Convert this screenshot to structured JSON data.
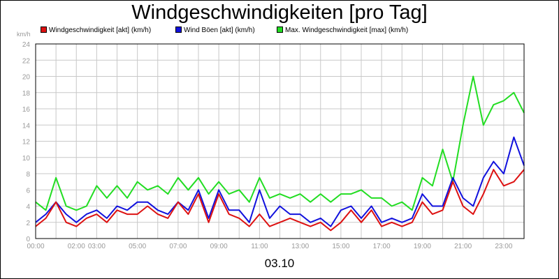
{
  "title": "Windgeschwindigkeiten [pro Tag]",
  "date_label": "03.10",
  "colors": {
    "frame": "#000000",
    "grid": "#c8c8c8",
    "tick_text": "#999999"
  },
  "chart_data": {
    "type": "line",
    "title": "Windgeschwindigkeiten [pro Tag]",
    "ylabel": "km/h",
    "xlabel": "03.10",
    "ylim": [
      0,
      24
    ],
    "yticks": [
      0,
      2,
      4,
      6,
      8,
      10,
      12,
      14,
      16,
      18,
      20,
      22,
      24
    ],
    "xlim": [
      0,
      24
    ],
    "xticks": [
      {
        "h": 0,
        "label": "00:00"
      },
      {
        "h": 2,
        "label": "02:00"
      },
      {
        "h": 3,
        "label": "03:00"
      },
      {
        "h": 5,
        "label": "05:00"
      },
      {
        "h": 7,
        "label": "07:00"
      },
      {
        "h": 9,
        "label": "09:00"
      },
      {
        "h": 11,
        "label": "11:00"
      },
      {
        "h": 13,
        "label": "13:00"
      },
      {
        "h": 15,
        "label": "15:00"
      },
      {
        "h": 17,
        "label": "17:00"
      },
      {
        "h": 19,
        "label": "19:00"
      },
      {
        "h": 21,
        "label": "21:00"
      },
      {
        "h": 23,
        "label": "23:00"
      }
    ],
    "legend_position": "top",
    "grid": true,
    "series": [
      {
        "name": "Windgeschwindigkeit [akt] (km/h)",
        "color": "#dd1111",
        "x": [
          0,
          0.5,
          1,
          1.5,
          2,
          2.5,
          3,
          3.5,
          4,
          4.5,
          5,
          5.5,
          6,
          6.5,
          7,
          7.5,
          8,
          8.5,
          9,
          9.5,
          10,
          10.5,
          11,
          11.5,
          12,
          12.5,
          13,
          13.5,
          14,
          14.5,
          15,
          15.5,
          16,
          16.5,
          17,
          17.5,
          18,
          18.5,
          19,
          19.5,
          20,
          20.5,
          21,
          21.5,
          22,
          22.5,
          23,
          23.5,
          24
        ],
        "values": [
          1.5,
          2.5,
          4.5,
          2.0,
          1.5,
          2.5,
          3.0,
          2.0,
          3.5,
          3.0,
          3.0,
          4.0,
          3.0,
          2.5,
          4.5,
          3.0,
          5.5,
          2.0,
          5.5,
          3.0,
          2.5,
          1.5,
          3.0,
          1.5,
          2.0,
          2.5,
          2.0,
          1.5,
          2.0,
          1.0,
          2.0,
          3.5,
          2.0,
          3.5,
          1.5,
          2.0,
          1.5,
          2.0,
          4.5,
          3.0,
          3.5,
          7.0,
          4.0,
          3.0,
          5.5,
          8.5,
          6.5,
          7.0,
          8.5
        ]
      },
      {
        "name": "Wind Böen [akt] (km/h)",
        "color": "#1111dd",
        "x": [
          0,
          0.5,
          1,
          1.5,
          2,
          2.5,
          3,
          3.5,
          4,
          4.5,
          5,
          5.5,
          6,
          6.5,
          7,
          7.5,
          8,
          8.5,
          9,
          9.5,
          10,
          10.5,
          11,
          11.5,
          12,
          12.5,
          13,
          13.5,
          14,
          14.5,
          15,
          15.5,
          16,
          16.5,
          17,
          17.5,
          18,
          18.5,
          19,
          19.5,
          20,
          20.5,
          21,
          21.5,
          22,
          22.5,
          23,
          23.5,
          24
        ],
        "values": [
          2.0,
          3.0,
          4.5,
          3.0,
          2.0,
          3.0,
          3.5,
          2.5,
          4.0,
          3.5,
          4.5,
          4.5,
          3.5,
          3.0,
          4.5,
          3.5,
          6.0,
          2.5,
          6.0,
          3.5,
          3.5,
          2.0,
          6.0,
          2.5,
          4.0,
          3.0,
          3.0,
          2.0,
          2.5,
          1.5,
          3.5,
          4.0,
          2.5,
          4.0,
          2.0,
          2.5,
          2.0,
          2.5,
          5.5,
          4.0,
          4.0,
          7.5,
          5.0,
          4.0,
          7.5,
          9.5,
          8.0,
          12.5,
          9.0
        ]
      },
      {
        "name": "Max. Windgeschwindigkeit [max] (km/h)",
        "color": "#22dd22",
        "x": [
          0,
          0.5,
          1,
          1.5,
          2,
          2.5,
          3,
          3.5,
          4,
          4.5,
          5,
          5.5,
          6,
          6.5,
          7,
          7.5,
          8,
          8.5,
          9,
          9.5,
          10,
          10.5,
          11,
          11.5,
          12,
          12.5,
          13,
          13.5,
          14,
          14.5,
          15,
          15.5,
          16,
          16.5,
          17,
          17.5,
          18,
          18.5,
          19,
          19.5,
          20,
          20.5,
          21,
          21.5,
          22,
          22.5,
          23,
          23.5,
          24
        ],
        "values": [
          4.5,
          3.5,
          7.5,
          4.0,
          3.5,
          4.0,
          6.5,
          5.0,
          6.5,
          5.0,
          7.0,
          6.0,
          6.5,
          5.5,
          7.5,
          6.0,
          7.5,
          5.5,
          7.0,
          5.5,
          6.0,
          4.5,
          7.5,
          5.0,
          5.5,
          5.0,
          5.5,
          4.5,
          5.5,
          4.5,
          5.5,
          5.5,
          6.0,
          5.0,
          5.0,
          4.0,
          4.5,
          3.5,
          7.5,
          6.5,
          11.0,
          7.0,
          14.0,
          20.0,
          14.0,
          16.5,
          17.0,
          18.0,
          15.5
        ]
      }
    ]
  }
}
